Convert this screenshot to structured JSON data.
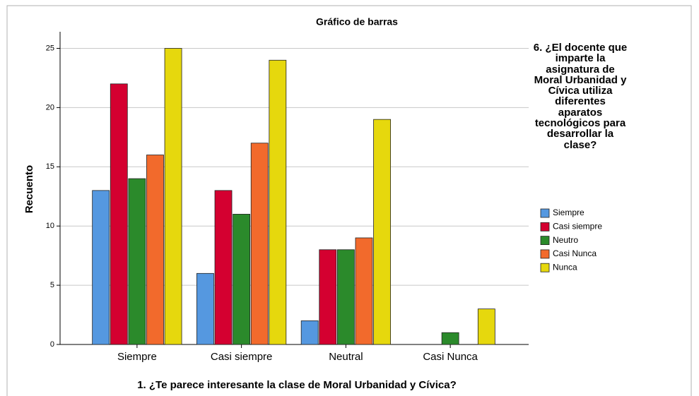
{
  "chart_data": {
    "type": "bar",
    "title": "Gráfico de barras",
    "x_label": "1. ¿Te parece interesante la clase de Moral Urbanidad y Cívica?",
    "y_label": "Recuento",
    "legend_title": "6. ¿El docente que imparte la asignatura de Moral Urbanidad y Cívica utiliza diferentes aparatos tecnológicos para desarrollar la clase?",
    "categories": [
      "Siempre",
      "Casi siempre",
      "Neutral",
      "Casi Nunca"
    ],
    "series": [
      {
        "name": "Siempre",
        "color": "#5598e0",
        "values": [
          13,
          6,
          2,
          null
        ]
      },
      {
        "name": "Casi siempre",
        "color": "#d40030",
        "values": [
          22,
          13,
          8,
          null
        ]
      },
      {
        "name": "Neutro",
        "color": "#2b8a2b",
        "values": [
          14,
          11,
          8,
          1
        ]
      },
      {
        "name": "Casi Nunca",
        "color": "#f26a2c",
        "values": [
          16,
          17,
          9,
          null
        ]
      },
      {
        "name": "Nunca",
        "color": "#e6d80d",
        "values": [
          25,
          24,
          19,
          3
        ]
      }
    ],
    "ylim": [
      0,
      26.4
    ],
    "yticks": [
      0,
      5,
      10,
      15,
      20,
      25
    ],
    "grid": true,
    "legend": "right"
  }
}
